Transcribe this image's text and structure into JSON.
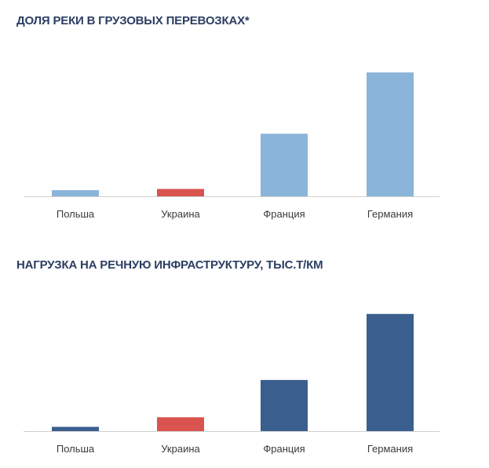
{
  "colors": {
    "baseline": "#cfcfcf",
    "title": "#2c3e63"
  },
  "chart_data": [
    {
      "type": "bar",
      "title": "ДОЛЯ РЕКИ В ГРУЗОВЫХ ПЕРЕВОЗКАХ*",
      "categories": [
        "Польша",
        "Украина",
        "Франция",
        "Германия"
      ],
      "values": [
        0.5,
        0.6,
        5.1,
        10.1
      ],
      "bar_colors": [
        "#8ab4d9",
        "#d9534f",
        "#8ab4d9",
        "#8ab4d9"
      ],
      "ylim": [
        0,
        10.5
      ],
      "grid": false
    },
    {
      "type": "bar",
      "title": "НАГРУЗКА НА РЕЧНУЮ ИНФРАСТРУКТУРУ, ТЫС.Т/КМ",
      "categories": [
        "Польша",
        "Украина",
        "Франция",
        "Германия"
      ],
      "values": [
        0.4,
        1.3,
        4.8,
        11.0
      ],
      "bar_colors": [
        "#3a5f8f",
        "#d9534f",
        "#3a5f8f",
        "#3a5f8f"
      ],
      "ylim": [
        0,
        11.5
      ],
      "grid": false
    }
  ]
}
